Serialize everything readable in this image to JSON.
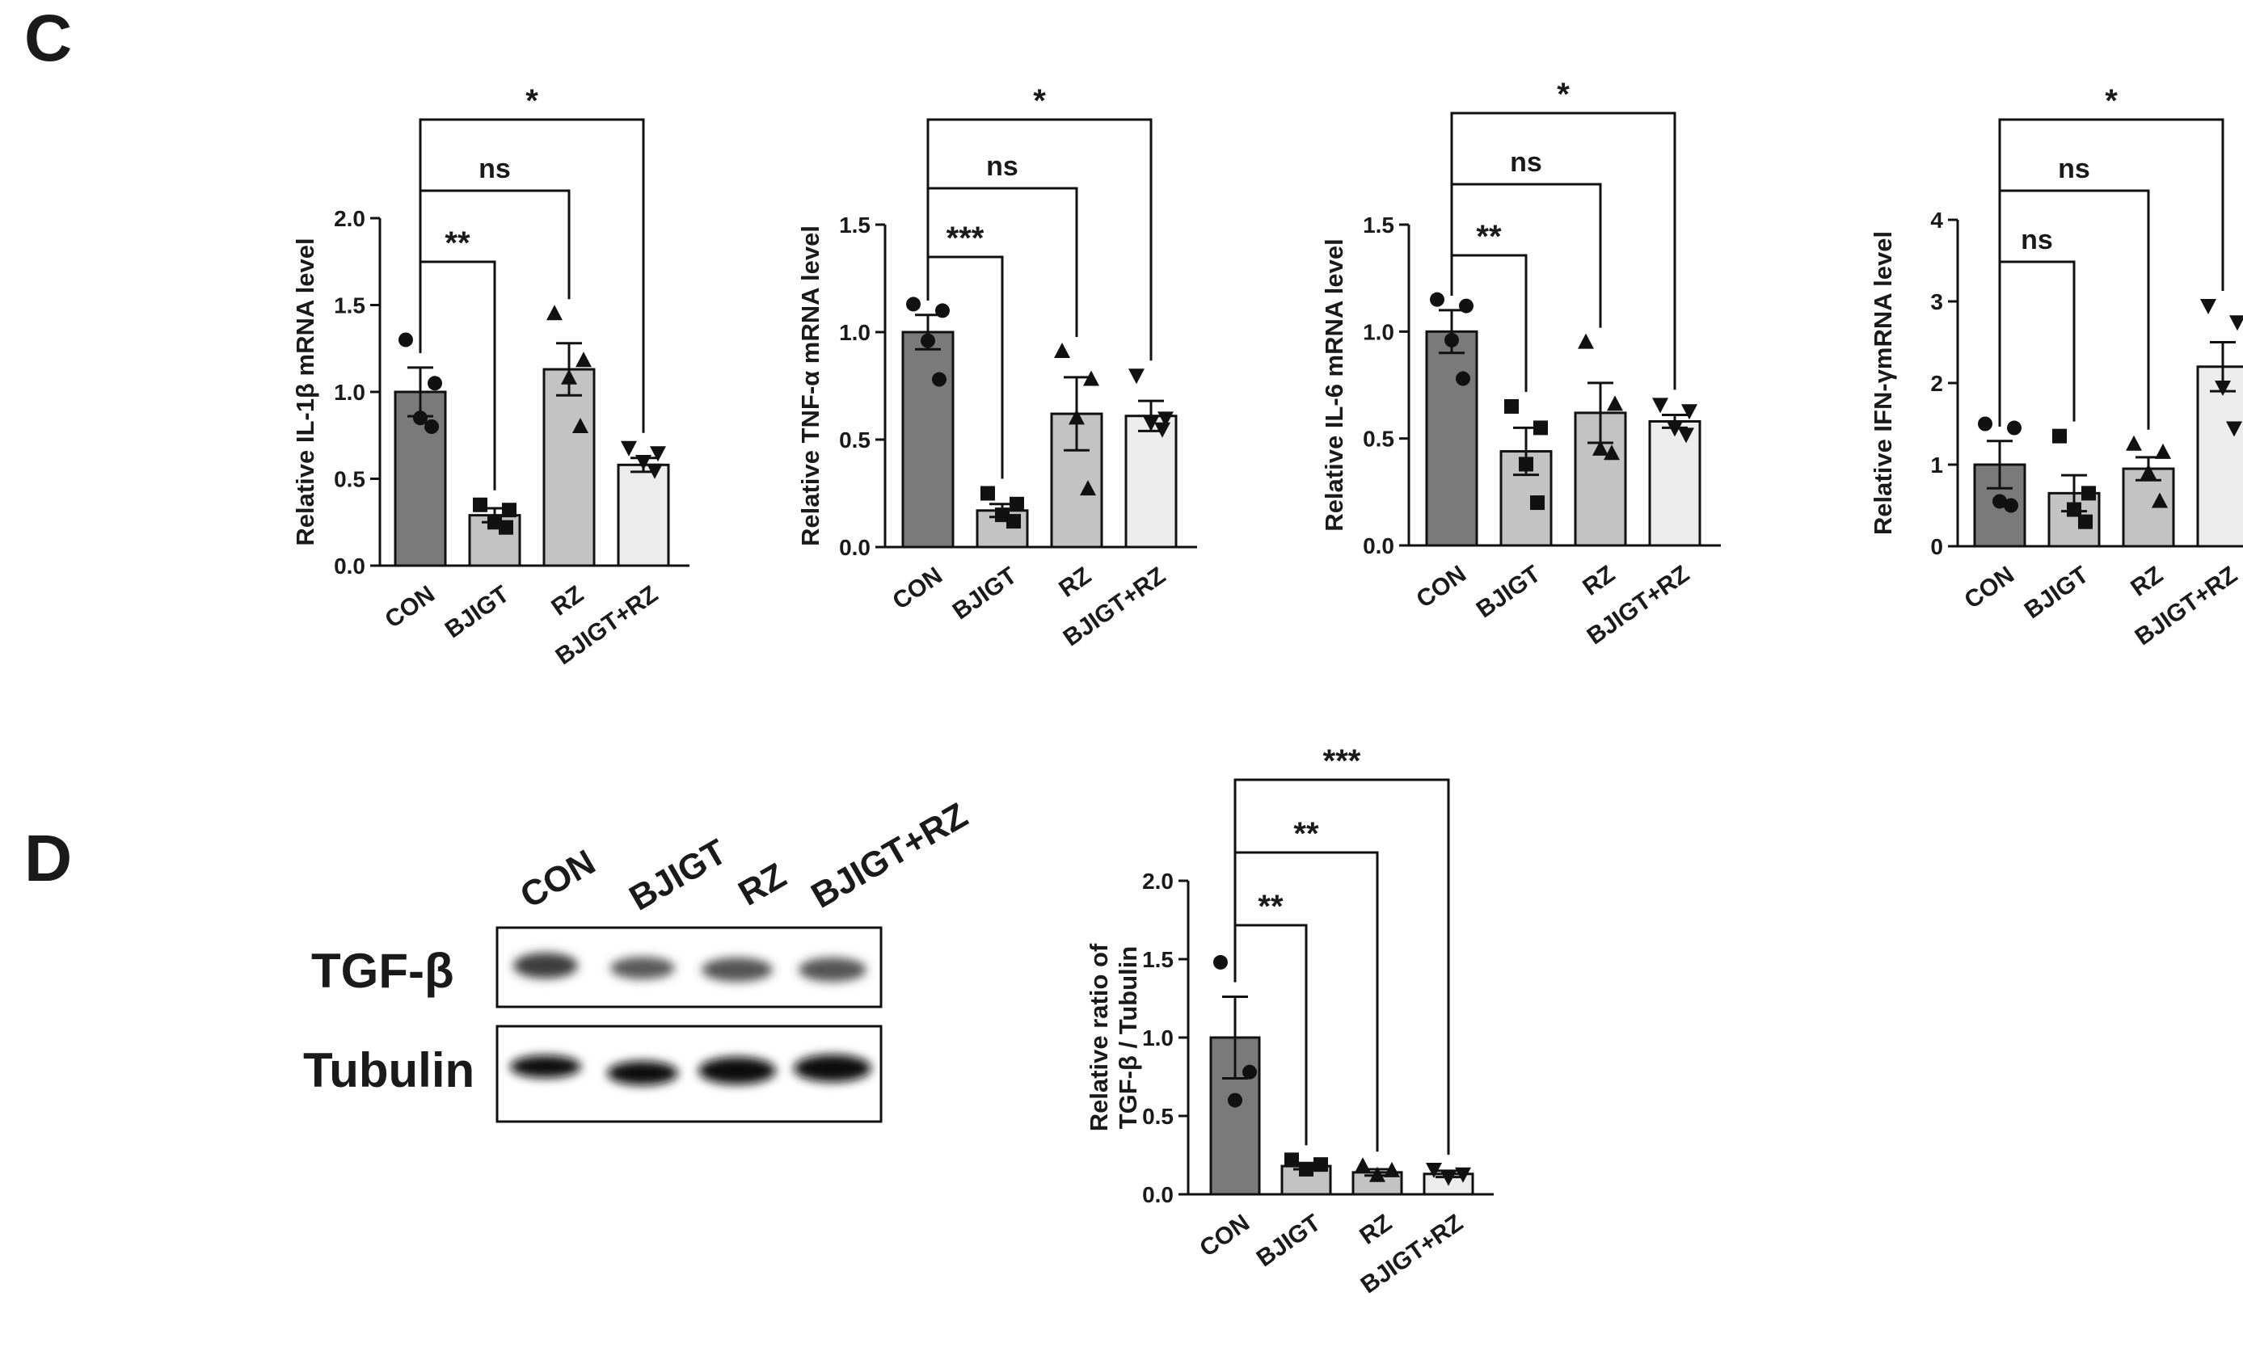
{
  "panels": [
    {
      "letter": "C"
    },
    {
      "letter": "D"
    }
  ],
  "western_blot": {
    "lanes": [
      "CON",
      "BJIGT",
      "RZ",
      "BJIGT+RZ"
    ],
    "rows": [
      "TGF-β",
      "Tubulin"
    ]
  },
  "chart_data": [
    {
      "type": "bar",
      "categories": [
        "CON",
        "BJIGT",
        "RZ",
        "BJIGT+RZ"
      ],
      "values": [
        1.0,
        0.29,
        1.13,
        0.58
      ],
      "sem": [
        0.14,
        0.04,
        0.15,
        0.04
      ],
      "points": [
        [
          1.3,
          1.05,
          0.85,
          0.8
        ],
        [
          0.35,
          0.32,
          0.25,
          0.22
        ],
        [
          1.45,
          1.18,
          1.08,
          0.8
        ],
        [
          0.68,
          0.65,
          0.6,
          0.55
        ]
      ],
      "markers": [
        "circle",
        "square",
        "triangle",
        "triangle-down"
      ],
      "bar_colors": [
        "#7a7a7a",
        "#c3c3c3",
        "#c3c3c3",
        "#ececec"
      ],
      "ylabel": "Relative IL-1β mRNA level",
      "ylim": [
        0,
        2.0
      ],
      "yticks": [
        "0.0",
        "0.5",
        "1.0",
        "1.5",
        "2.0"
      ],
      "significance": [
        {
          "from": "CON",
          "to": "BJIGT",
          "label": "**"
        },
        {
          "from": "CON",
          "to": "RZ",
          "label": "ns"
        },
        {
          "from": "CON",
          "to": "BJIGT+RZ",
          "label": "*"
        }
      ]
    },
    {
      "type": "bar",
      "categories": [
        "CON",
        "BJIGT",
        "RZ",
        "BJIGT+RZ"
      ],
      "values": [
        1.0,
        0.17,
        0.62,
        0.61
      ],
      "sem": [
        0.08,
        0.03,
        0.17,
        0.07
      ],
      "points": [
        [
          1.13,
          1.1,
          0.96,
          0.78
        ],
        [
          0.25,
          0.2,
          0.15,
          0.12
        ],
        [
          0.91,
          0.78,
          0.6,
          0.27
        ],
        [
          0.8,
          0.6,
          0.58,
          0.55
        ]
      ],
      "markers": [
        "circle",
        "square",
        "triangle",
        "triangle-down"
      ],
      "bar_colors": [
        "#7a7a7a",
        "#c3c3c3",
        "#c3c3c3",
        "#ececec"
      ],
      "ylabel": "Relative TNF-α mRNA level",
      "ylim": [
        0,
        1.5
      ],
      "yticks": [
        "0.0",
        "0.5",
        "1.0",
        "1.5"
      ],
      "significance": [
        {
          "from": "CON",
          "to": "BJIGT",
          "label": "***"
        },
        {
          "from": "CON",
          "to": "RZ",
          "label": "ns"
        },
        {
          "from": "CON",
          "to": "BJIGT+RZ",
          "label": "*"
        }
      ]
    },
    {
      "type": "bar",
      "categories": [
        "CON",
        "BJIGT",
        "RZ",
        "BJIGT+RZ"
      ],
      "values": [
        1.0,
        0.44,
        0.62,
        0.58
      ],
      "sem": [
        0.1,
        0.11,
        0.14,
        0.03
      ],
      "points": [
        [
          1.15,
          1.12,
          0.96,
          0.78
        ],
        [
          0.65,
          0.55,
          0.38,
          0.2
        ],
        [
          0.95,
          0.66,
          0.45,
          0.43
        ],
        [
          0.66,
          0.63,
          0.55,
          0.52
        ]
      ],
      "markers": [
        "circle",
        "square",
        "triangle",
        "triangle-down"
      ],
      "bar_colors": [
        "#7a7a7a",
        "#c3c3c3",
        "#c3c3c3",
        "#ececec"
      ],
      "ylabel": "Relative IL-6 mRNA level",
      "ylim": [
        0,
        1.5
      ],
      "yticks": [
        "0.0",
        "0.5",
        "1.0",
        "1.5"
      ],
      "significance": [
        {
          "from": "CON",
          "to": "BJIGT",
          "label": "**"
        },
        {
          "from": "CON",
          "to": "RZ",
          "label": "ns"
        },
        {
          "from": "CON",
          "to": "BJIGT+RZ",
          "label": "*"
        }
      ]
    },
    {
      "type": "bar",
      "categories": [
        "CON",
        "BJIGT",
        "RZ",
        "BJIGT+RZ"
      ],
      "values": [
        1.0,
        0.65,
        0.95,
        2.2
      ],
      "sem": [
        0.29,
        0.22,
        0.14,
        0.3
      ],
      "points": [
        [
          1.5,
          1.45,
          0.55,
          0.5
        ],
        [
          1.35,
          0.65,
          0.45,
          0.3
        ],
        [
          1.25,
          1.15,
          0.9,
          0.55
        ],
        [
          2.95,
          2.75,
          1.95,
          1.45
        ]
      ],
      "markers": [
        "circle",
        "square",
        "triangle",
        "triangle-down"
      ],
      "bar_colors": [
        "#7a7a7a",
        "#c3c3c3",
        "#c3c3c3",
        "#ececec"
      ],
      "ylabel": "Relative IFN-γmRNA level",
      "ylim": [
        0,
        4
      ],
      "yticks": [
        "0",
        "1",
        "2",
        "3",
        "4"
      ],
      "significance": [
        {
          "from": "CON",
          "to": "BJIGT",
          "label": "ns"
        },
        {
          "from": "CON",
          "to": "RZ",
          "label": "ns"
        },
        {
          "from": "CON",
          "to": "BJIGT+RZ",
          "label": "*"
        }
      ]
    },
    {
      "type": "bar",
      "categories": [
        "CON",
        "BJIGT",
        "RZ",
        "BJIGT+RZ"
      ],
      "values": [
        1.0,
        0.18,
        0.14,
        0.13
      ],
      "sem": [
        0.26,
        0.02,
        0.02,
        0.02
      ],
      "points": [
        [
          1.48,
          0.78,
          0.6
        ],
        [
          0.22,
          0.19,
          0.16
        ],
        [
          0.18,
          0.15,
          0.12
        ],
        [
          0.16,
          0.13,
          0.11
        ]
      ],
      "markers": [
        "circle",
        "square",
        "triangle",
        "triangle-down"
      ],
      "bar_colors": [
        "#7a7a7a",
        "#c3c3c3",
        "#c3c3c3",
        "#ececec"
      ],
      "ylabel": [
        "Relative ratio of",
        "TGF-β / Tubulin"
      ],
      "ylim": [
        0,
        2.0
      ],
      "yticks": [
        "0.0",
        "0.5",
        "1.0",
        "1.5",
        "2.0"
      ],
      "significance": [
        {
          "from": "CON",
          "to": "BJIGT",
          "label": "**"
        },
        {
          "from": "CON",
          "to": "RZ",
          "label": "**"
        },
        {
          "from": "CON",
          "to": "BJIGT+RZ",
          "label": "***"
        }
      ]
    }
  ]
}
